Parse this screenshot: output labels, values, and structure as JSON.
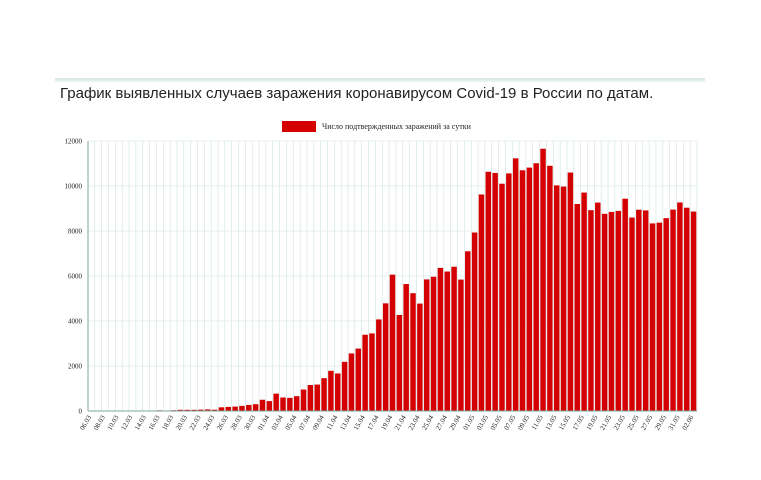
{
  "title": "График выявленных случаев заражения коронавирусом Covid-19 в России по датам.",
  "legend": {
    "label": "Число подтвержденных заражений за сутки"
  },
  "colors": {
    "bar": "#d40000",
    "grid": "#cfe3df",
    "axis": "#7aa7a0",
    "header_rule": "#d4e6e2"
  },
  "chart_data": {
    "type": "bar",
    "title": "График выявленных случаев заражения коронавирусом Covid-19 в России по датам.",
    "xlabel": "",
    "ylabel": "",
    "ylim": [
      0,
      12000
    ],
    "yticks": [
      0,
      2000,
      4000,
      6000,
      8000,
      10000,
      12000
    ],
    "grid": true,
    "legend_position": "top-center",
    "tick_labels": [
      "06.03",
      "08.03",
      "10.03",
      "12.03",
      "14.03",
      "16.03",
      "18.03",
      "20.03",
      "22.03",
      "24.03",
      "26.03",
      "28.03",
      "30.03",
      "01.04",
      "03.04",
      "05.04",
      "07.04",
      "09.04",
      "11.04",
      "13.04",
      "15.04",
      "17.04",
      "19.04",
      "21.04",
      "23.04",
      "25.04",
      "27.04",
      "29.04",
      "01.05",
      "03.05",
      "05.05",
      "07.05",
      "09.05",
      "11.05",
      "13.05",
      "15.05",
      "17.05",
      "19.05",
      "21.05",
      "23.05",
      "25.05",
      "27.05",
      "29.05",
      "31.05",
      "02.06"
    ],
    "categories": [
      "06.03",
      "07.03",
      "08.03",
      "09.03",
      "10.03",
      "11.03",
      "12.03",
      "13.03",
      "14.03",
      "15.03",
      "16.03",
      "17.03",
      "18.03",
      "19.03",
      "20.03",
      "21.03",
      "22.03",
      "23.03",
      "24.03",
      "25.03",
      "26.03",
      "27.03",
      "28.03",
      "29.03",
      "30.03",
      "31.03",
      "01.04",
      "02.04",
      "03.04",
      "04.04",
      "05.04",
      "06.04",
      "07.04",
      "08.04",
      "09.04",
      "10.04",
      "11.04",
      "12.04",
      "13.04",
      "14.04",
      "15.04",
      "16.04",
      "17.04",
      "18.04",
      "19.04",
      "20.04",
      "21.04",
      "22.04",
      "23.04",
      "24.04",
      "25.04",
      "26.04",
      "27.04",
      "28.04",
      "29.04",
      "30.04",
      "01.05",
      "02.05",
      "03.05",
      "04.05",
      "05.05",
      "06.05",
      "07.05",
      "08.05",
      "09.05",
      "10.05",
      "11.05",
      "12.05",
      "13.05",
      "14.05",
      "15.05",
      "16.05",
      "17.05",
      "18.05",
      "19.05",
      "20.05",
      "21.05",
      "22.05",
      "23.05",
      "24.05",
      "25.05",
      "26.05",
      "27.05",
      "28.05",
      "29.05",
      "30.05",
      "31.05",
      "01.06",
      "02.06"
    ],
    "series": [
      {
        "name": "Число подтвержденных заражений за сутки",
        "values": [
          2,
          0,
          1,
          3,
          5,
          6,
          8,
          14,
          13,
          18,
          30,
          21,
          34,
          53,
          54,
          53,
          61,
          71,
          57,
          163,
          182,
          196,
          228,
          270,
          302,
          500,
          440,
          771,
          601,
          582,
          658,
          954,
          1154,
          1175,
          1459,
          1786,
          1667,
          2186,
          2558,
          2774,
          3388,
          3448,
          4070,
          4785,
          6060,
          4268,
          5642,
          5236,
          4774,
          5849,
          5966,
          6361,
          6198,
          6411,
          5841,
          7099,
          7933,
          9623,
          10633,
          10581,
          10102,
          10559,
          11231,
          10699,
          10817,
          11012,
          11656,
          10899,
          10028,
          9974,
          10598,
          9200,
          9709,
          8926,
          9263,
          8764,
          8849,
          8894,
          9434,
          8599,
          8946,
          8915,
          8338,
          8371,
          8572,
          8952,
          9268,
          9035,
          8863
        ]
      }
    ]
  }
}
